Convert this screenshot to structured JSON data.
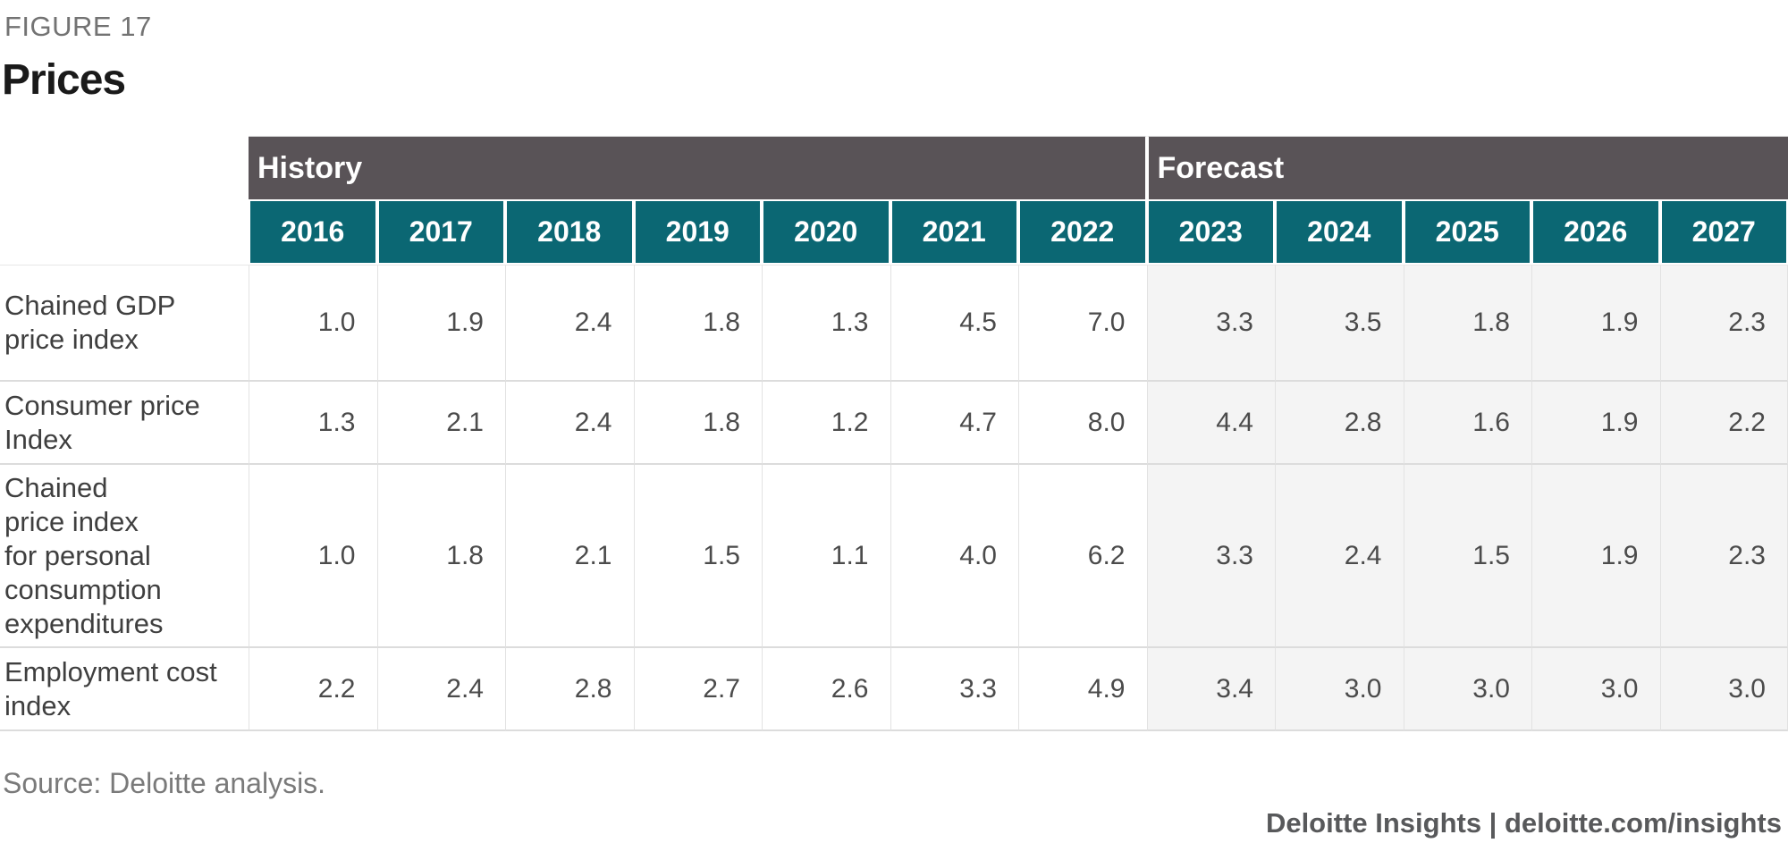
{
  "figure": {
    "label": "FIGURE 17",
    "title": "Prices"
  },
  "chart_data": {
    "type": "table",
    "title": "Prices",
    "bands": [
      {
        "label": "History",
        "span": 7
      },
      {
        "label": "Forecast",
        "span": 5
      }
    ],
    "years": [
      "2016",
      "2017",
      "2018",
      "2019",
      "2020",
      "2021",
      "2022",
      "2023",
      "2024",
      "2025",
      "2026",
      "2027"
    ],
    "rows": [
      {
        "label": "Chained GDP\nprice index",
        "label_plain": "Chained GDP price index",
        "values": [
          "1.0",
          "1.9",
          "2.4",
          "1.8",
          "1.3",
          "4.5",
          "7.0",
          "3.3",
          "3.5",
          "1.8",
          "1.9",
          "2.3"
        ]
      },
      {
        "label": "Consumer price\nIndex",
        "label_plain": "Consumer price Index",
        "values": [
          "1.3",
          "2.1",
          "2.4",
          "1.8",
          "1.2",
          "4.7",
          "8.0",
          "4.4",
          "2.8",
          "1.6",
          "1.9",
          "2.2"
        ]
      },
      {
        "label": "Chained\nprice index\nfor personal\nconsumption\nexpenditures",
        "label_plain": "Chained price index for personal consumption expenditures",
        "values": [
          "1.0",
          "1.8",
          "2.1",
          "1.5",
          "1.1",
          "4.0",
          "6.2",
          "3.3",
          "2.4",
          "1.5",
          "1.9",
          "2.3"
        ]
      },
      {
        "label": "Employment cost\nindex",
        "label_plain": "Employment cost index",
        "values": [
          "2.2",
          "2.4",
          "2.8",
          "2.7",
          "2.6",
          "3.3",
          "4.9",
          "3.4",
          "3.0",
          "3.0",
          "3.0",
          "3.0"
        ]
      }
    ]
  },
  "footer": {
    "source": "Source: Deloitte analysis.",
    "branding": "Deloitte Insights | deloitte.com/insights"
  },
  "colors": {
    "band_bg": "#595357",
    "year_header_bg": "#0b6773",
    "forecast_cell_bg": "#f4f4f4",
    "grid_line": "#dcdcdc",
    "title_text": "#1a1a1a",
    "figure_label_text": "#737373",
    "value_text": "#4b4b4b",
    "source_text": "#7a7a7a",
    "branding_text": "#58595b"
  }
}
